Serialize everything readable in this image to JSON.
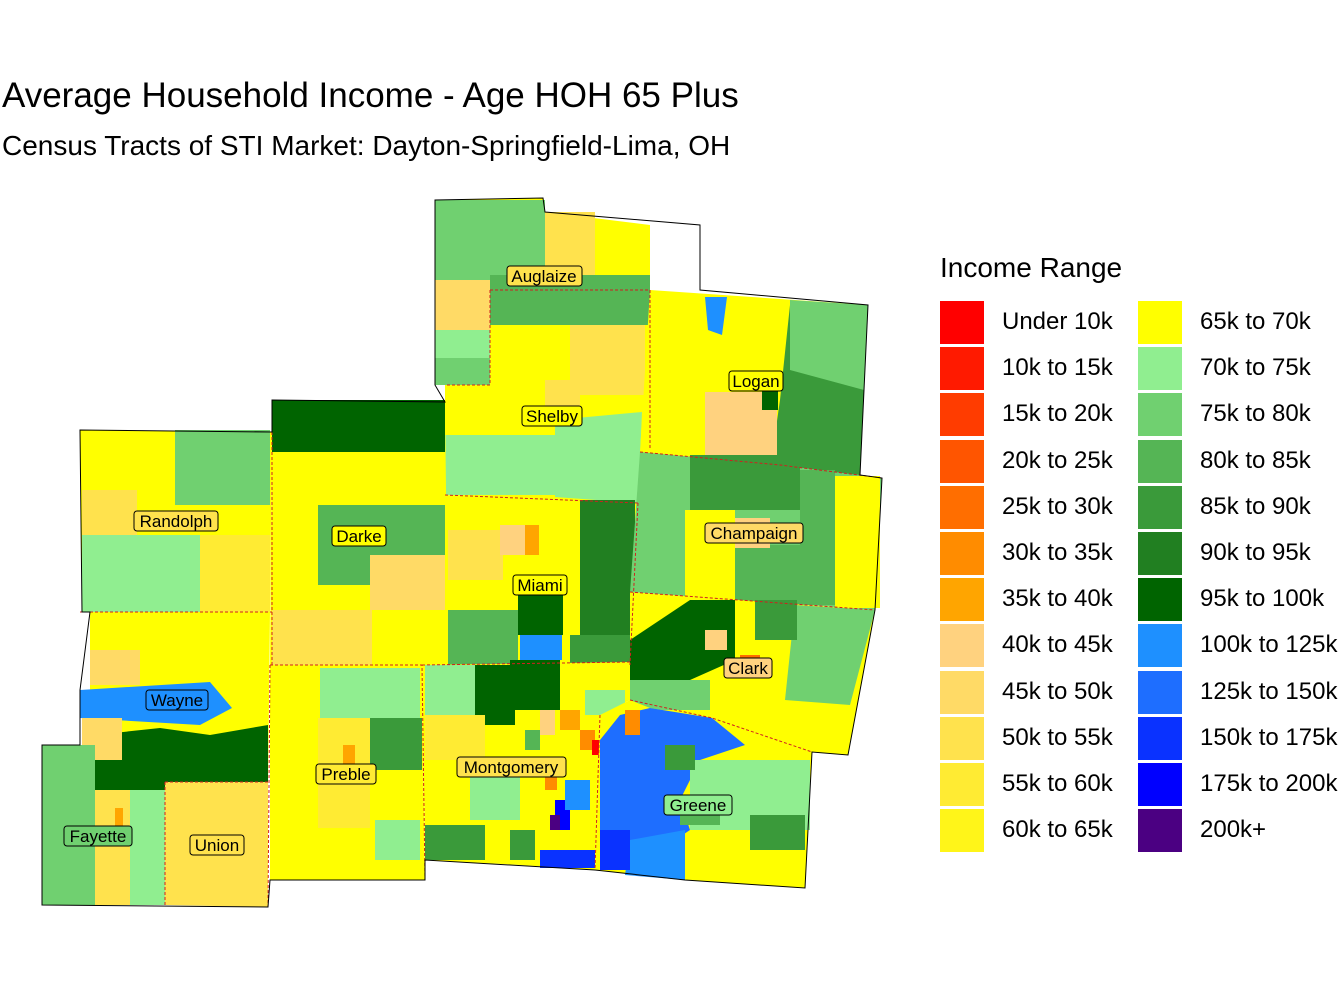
{
  "title": "Average Household Income - Age HOH 65 Plus",
  "subtitle": "Census Tracts of STI Market: Dayton-Springfield-Lima, OH",
  "legend": {
    "title": "Income Range",
    "items": [
      {
        "label": "Under 10k",
        "color": "#ff0000"
      },
      {
        "label": "10k to 15k",
        "color": "#ff1a00"
      },
      {
        "label": "15k to 20k",
        "color": "#ff3c00"
      },
      {
        "label": "20k to 25k",
        "color": "#ff5500"
      },
      {
        "label": "25k to 30k",
        "color": "#ff6e00"
      },
      {
        "label": "30k to 35k",
        "color": "#ff8c00"
      },
      {
        "label": "35k to 40k",
        "color": "#ffa500"
      },
      {
        "label": "40k to 45k",
        "color": "#ffd27f"
      },
      {
        "label": "45k to 50k",
        "color": "#ffda66"
      },
      {
        "label": "50k to 55k",
        "color": "#ffe24d"
      },
      {
        "label": "55k to 60k",
        "color": "#ffeb33"
      },
      {
        "label": "60k to 65k",
        "color": "#fff519"
      },
      {
        "label": "65k to 70k",
        "color": "#ffff00"
      },
      {
        "label": "70k to 75k",
        "color": "#90ee90"
      },
      {
        "label": "75k to 80k",
        "color": "#70d070"
      },
      {
        "label": "80k to 85k",
        "color": "#55b555"
      },
      {
        "label": "85k to 90k",
        "color": "#3a9a3a"
      },
      {
        "label": "90k to 95k",
        "color": "#217f21"
      },
      {
        "label": "95k to 100k",
        "color": "#006400"
      },
      {
        "label": "100k to 125k",
        "color": "#1e90ff"
      },
      {
        "label": "125k to 150k",
        "color": "#1e6eff"
      },
      {
        "label": "150k to 175k",
        "color": "#0a32ff"
      },
      {
        "label": "175k to 200k",
        "color": "#0000ff"
      },
      {
        "label": "200k+",
        "color": "#4b0082"
      }
    ]
  },
  "counties": [
    {
      "name": "Auglaize"
    },
    {
      "name": "Logan"
    },
    {
      "name": "Shelby"
    },
    {
      "name": "Randolph"
    },
    {
      "name": "Darke"
    },
    {
      "name": "Champaign"
    },
    {
      "name": "Miami"
    },
    {
      "name": "Clark"
    },
    {
      "name": "Wayne"
    },
    {
      "name": "Preble"
    },
    {
      "name": "Montgomery"
    },
    {
      "name": "Greene"
    },
    {
      "name": "Fayette"
    },
    {
      "name": "Union"
    }
  ]
}
